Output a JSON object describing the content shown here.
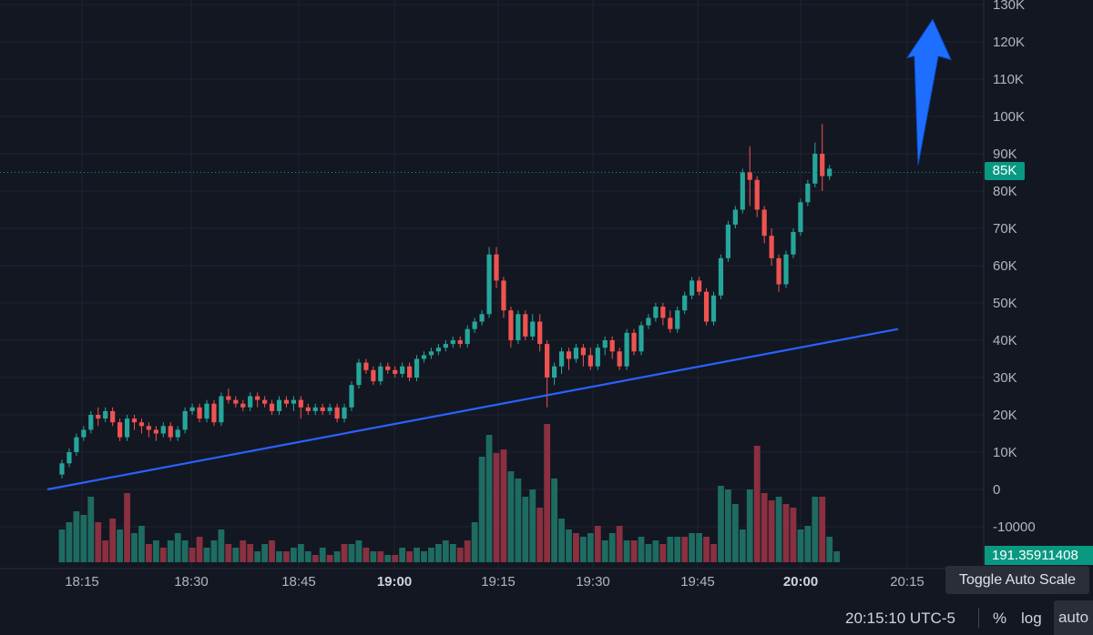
{
  "chart_data": {
    "type": "candlestick",
    "y_axis_ticks": [
      "130K",
      "120K",
      "110K",
      "100K",
      "90K",
      "80K",
      "70K",
      "60K",
      "50K",
      "40K",
      "30K",
      "20K",
      "10K",
      "0",
      "-10000"
    ],
    "x_axis_ticks": [
      "18:15",
      "18:30",
      "18:45",
      "19:00",
      "19:15",
      "19:30",
      "19:45",
      "20:00",
      "20:15"
    ],
    "x_axis_bold_ticks": [
      "19:00",
      "20:00"
    ],
    "ylim": [
      -15000,
      130000
    ],
    "current_price_label": "85K",
    "current_price": 85000,
    "volume_label": "191.35911408",
    "grid": true,
    "colors": {
      "up": "#26a69a",
      "down": "#ef5350",
      "up_volume": "#1e6b61",
      "down_volume": "#8a3040",
      "trendline": "#2962ff",
      "arrow": "#1e6fff"
    },
    "trendline": {
      "from": {
        "time": "18:15",
        "value": 0
      },
      "to": {
        "time": "20:14",
        "value": 43000
      }
    },
    "arrow": {
      "direction": "up",
      "from_value": 87000,
      "to_value": 125000
    },
    "candles": [
      [
        4000,
        7000,
        8000,
        3000
      ],
      [
        7000,
        10000,
        11000,
        6000
      ],
      [
        10000,
        14000,
        15000,
        9000
      ],
      [
        14000,
        16000,
        17000,
        13000
      ],
      [
        16000,
        20000,
        21000,
        15000
      ],
      [
        20000,
        19000,
        22000,
        17000
      ],
      [
        19000,
        21000,
        22000,
        18000
      ],
      [
        21000,
        18000,
        22000,
        17000
      ],
      [
        18000,
        14000,
        19000,
        13000
      ],
      [
        14000,
        19000,
        20000,
        13000
      ],
      [
        19000,
        18000,
        20000,
        16000
      ],
      [
        18000,
        17000,
        19000,
        15000
      ],
      [
        17000,
        16000,
        18000,
        14000
      ],
      [
        16000,
        15000,
        17000,
        13000
      ],
      [
        15000,
        17000,
        18000,
        14000
      ],
      [
        17000,
        14000,
        18000,
        13000
      ],
      [
        14000,
        16000,
        17000,
        13000
      ],
      [
        16000,
        21000,
        22000,
        15000
      ],
      [
        21000,
        22000,
        23000,
        20000
      ],
      [
        22000,
        19000,
        23000,
        18000
      ],
      [
        19000,
        23000,
        24000,
        18000
      ],
      [
        23000,
        18000,
        24000,
        17000
      ],
      [
        18000,
        25000,
        26000,
        17000
      ],
      [
        25000,
        24000,
        27000,
        23000
      ],
      [
        24000,
        23000,
        25000,
        22000
      ],
      [
        23000,
        22000,
        24000,
        21000
      ],
      [
        22000,
        25000,
        26000,
        21000
      ],
      [
        25000,
        24000,
        26000,
        22000
      ],
      [
        24000,
        23000,
        25000,
        22000
      ],
      [
        23000,
        21000,
        24000,
        20000
      ],
      [
        21000,
        24000,
        25000,
        20000
      ],
      [
        24000,
        23000,
        25000,
        22000
      ],
      [
        23000,
        24000,
        25000,
        21000
      ],
      [
        24000,
        22000,
        25000,
        19000
      ],
      [
        22000,
        21000,
        23000,
        20000
      ],
      [
        21000,
        22000,
        23000,
        20000
      ],
      [
        22000,
        21000,
        23000,
        20000
      ],
      [
        21000,
        22000,
        23000,
        20000
      ],
      [
        22000,
        19000,
        23000,
        18000
      ],
      [
        19000,
        22000,
        23000,
        18000
      ],
      [
        22000,
        28000,
        29000,
        21000
      ],
      [
        28000,
        34000,
        35000,
        27000
      ],
      [
        34000,
        32000,
        35000,
        31000
      ],
      [
        32000,
        29000,
        33000,
        28000
      ],
      [
        29000,
        33000,
        34000,
        28000
      ],
      [
        33000,
        32000,
        34000,
        31000
      ],
      [
        32000,
        31000,
        33000,
        30000
      ],
      [
        31000,
        33000,
        34000,
        30000
      ],
      [
        33000,
        30000,
        34000,
        29000
      ],
      [
        30000,
        35000,
        36000,
        29000
      ],
      [
        35000,
        36000,
        37000,
        34000
      ],
      [
        36000,
        37000,
        38000,
        35000
      ],
      [
        37000,
        38000,
        39000,
        36000
      ],
      [
        38000,
        39000,
        40000,
        37000
      ],
      [
        39000,
        40000,
        41000,
        38000
      ],
      [
        40000,
        39000,
        41000,
        38000
      ],
      [
        39000,
        43000,
        44000,
        38000
      ],
      [
        43000,
        45000,
        46000,
        42000
      ],
      [
        45000,
        47000,
        48000,
        44000
      ],
      [
        47000,
        63000,
        65000,
        46000
      ],
      [
        63000,
        56000,
        65000,
        54000
      ],
      [
        56000,
        48000,
        57000,
        46000
      ],
      [
        48000,
        40000,
        49000,
        38000
      ],
      [
        40000,
        47000,
        48000,
        39000
      ],
      [
        47000,
        41000,
        48000,
        40000
      ],
      [
        41000,
        45000,
        47000,
        40000
      ],
      [
        45000,
        39000,
        47000,
        37000
      ],
      [
        39000,
        30000,
        40000,
        22000
      ],
      [
        30000,
        33000,
        34000,
        28000
      ],
      [
        33000,
        37000,
        38000,
        31000
      ],
      [
        37000,
        35000,
        38000,
        32000
      ],
      [
        35000,
        38000,
        39000,
        34000
      ],
      [
        38000,
        36000,
        39000,
        33000
      ],
      [
        36000,
        33000,
        38000,
        32000
      ],
      [
        33000,
        38000,
        39000,
        32000
      ],
      [
        38000,
        40000,
        41000,
        36000
      ],
      [
        40000,
        37000,
        41000,
        35000
      ],
      [
        37000,
        33000,
        38000,
        32000
      ],
      [
        33000,
        42000,
        43000,
        32000
      ],
      [
        42000,
        37000,
        43000,
        36000
      ],
      [
        37000,
        44000,
        45000,
        36000
      ],
      [
        44000,
        46000,
        47000,
        43000
      ],
      [
        46000,
        49000,
        50000,
        45000
      ],
      [
        49000,
        46000,
        50000,
        44000
      ],
      [
        46000,
        43000,
        48000,
        42000
      ],
      [
        43000,
        48000,
        49000,
        42000
      ],
      [
        48000,
        52000,
        53000,
        47000
      ],
      [
        52000,
        56000,
        57000,
        51000
      ],
      [
        56000,
        53000,
        57000,
        52000
      ],
      [
        53000,
        45000,
        54000,
        44000
      ],
      [
        45000,
        52000,
        53000,
        44000
      ],
      [
        52000,
        62000,
        63000,
        51000
      ],
      [
        62000,
        71000,
        72000,
        61000
      ],
      [
        71000,
        75000,
        76000,
        70000
      ],
      [
        75000,
        85000,
        86000,
        74000
      ],
      [
        85000,
        83000,
        92000,
        76000
      ],
      [
        83000,
        75000,
        84000,
        73000
      ],
      [
        75000,
        68000,
        76000,
        66000
      ],
      [
        68000,
        62000,
        70000,
        60000
      ],
      [
        62000,
        55000,
        63000,
        53000
      ],
      [
        55000,
        63000,
        64000,
        54000
      ],
      [
        63000,
        69000,
        70000,
        62000
      ],
      [
        69000,
        77000,
        78000,
        68000
      ],
      [
        77000,
        82000,
        83000,
        76000
      ],
      [
        82000,
        90000,
        93000,
        81000
      ],
      [
        90000,
        84000,
        98000,
        80000
      ],
      [
        84000,
        86000,
        87000,
        83000
      ]
    ],
    "volumes": [
      [
        9,
        "up"
      ],
      [
        11,
        "up"
      ],
      [
        14,
        "up"
      ],
      [
        13,
        "up"
      ],
      [
        18,
        "up"
      ],
      [
        11,
        "down"
      ],
      [
        6,
        "down"
      ],
      [
        12,
        "down"
      ],
      [
        9,
        "up"
      ],
      [
        19,
        "down"
      ],
      [
        8,
        "up"
      ],
      [
        10,
        "up"
      ],
      [
        5,
        "down"
      ],
      [
        6,
        "up"
      ],
      [
        4,
        "down"
      ],
      [
        6,
        "up"
      ],
      [
        8,
        "up"
      ],
      [
        6,
        "up"
      ],
      [
        4,
        "down"
      ],
      [
        7,
        "down"
      ],
      [
        4,
        "up"
      ],
      [
        6,
        "up"
      ],
      [
        9,
        "up"
      ],
      [
        5,
        "down"
      ],
      [
        4,
        "up"
      ],
      [
        6,
        "down"
      ],
      [
        5,
        "down"
      ],
      [
        3,
        "up"
      ],
      [
        5,
        "up"
      ],
      [
        6,
        "down"
      ],
      [
        3,
        "up"
      ],
      [
        3,
        "down"
      ],
      [
        4,
        "up"
      ],
      [
        5,
        "up"
      ],
      [
        3,
        "up"
      ],
      [
        2,
        "down"
      ],
      [
        4,
        "up"
      ],
      [
        2,
        "down"
      ],
      [
        3,
        "up"
      ],
      [
        5,
        "down"
      ],
      [
        5,
        "up"
      ],
      [
        6,
        "up"
      ],
      [
        4,
        "down"
      ],
      [
        3,
        "up"
      ],
      [
        3,
        "down"
      ],
      [
        2,
        "up"
      ],
      [
        2,
        "down"
      ],
      [
        4,
        "up"
      ],
      [
        3,
        "down"
      ],
      [
        4,
        "up"
      ],
      [
        3,
        "up"
      ],
      [
        4,
        "up"
      ],
      [
        5,
        "up"
      ],
      [
        6,
        "up"
      ],
      [
        5,
        "up"
      ],
      [
        4,
        "down"
      ],
      [
        6,
        "down"
      ],
      [
        11,
        "up"
      ],
      [
        29,
        "up"
      ],
      [
        35,
        "up"
      ],
      [
        30,
        "down"
      ],
      [
        31,
        "down"
      ],
      [
        25,
        "up"
      ],
      [
        23,
        "up"
      ],
      [
        18,
        "up"
      ],
      [
        20,
        "up"
      ],
      [
        15,
        "down"
      ],
      [
        38,
        "down"
      ],
      [
        23,
        "up"
      ],
      [
        12,
        "up"
      ],
      [
        9,
        "up"
      ],
      [
        8,
        "down"
      ],
      [
        7,
        "up"
      ],
      [
        8,
        "up"
      ],
      [
        10,
        "down"
      ],
      [
        6,
        "up"
      ],
      [
        8,
        "up"
      ],
      [
        10,
        "down"
      ],
      [
        6,
        "up"
      ],
      [
        6,
        "down"
      ],
      [
        7,
        "up"
      ],
      [
        5,
        "up"
      ],
      [
        6,
        "up"
      ],
      [
        5,
        "down"
      ],
      [
        7,
        "up"
      ],
      [
        7,
        "up"
      ],
      [
        7,
        "down"
      ],
      [
        8,
        "up"
      ],
      [
        8,
        "up"
      ],
      [
        7,
        "down"
      ],
      [
        5,
        "down"
      ],
      [
        21,
        "up"
      ],
      [
        20,
        "up"
      ],
      [
        16,
        "up"
      ],
      [
        9,
        "up"
      ],
      [
        20,
        "up"
      ],
      [
        32,
        "down"
      ],
      [
        19,
        "down"
      ],
      [
        17,
        "down"
      ],
      [
        18,
        "up"
      ],
      [
        16,
        "down"
      ],
      [
        15,
        "down"
      ],
      [
        9,
        "up"
      ],
      [
        10,
        "up"
      ],
      [
        18,
        "up"
      ],
      [
        18,
        "down"
      ],
      [
        7,
        "up"
      ],
      [
        3,
        "up"
      ]
    ]
  },
  "bottom_bar": {
    "clock": "20:15:10 UTC-5",
    "percent_button": "%",
    "log_button": "log",
    "auto_button": "auto",
    "tooltip": "Toggle Auto Scale"
  }
}
